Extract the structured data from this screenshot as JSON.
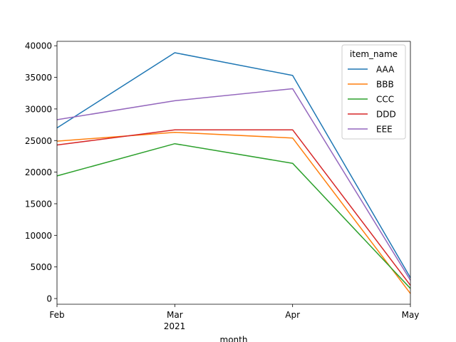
{
  "chart_data": {
    "type": "line",
    "categories": [
      "Feb",
      "Mar",
      "Apr",
      "May"
    ],
    "x_secondary_label": "2021",
    "xlabel": "month",
    "ylabel": "",
    "ylim": [
      -900,
      40700
    ],
    "yticks": [
      0,
      5000,
      10000,
      15000,
      20000,
      25000,
      30000,
      35000,
      40000
    ],
    "grid": false,
    "legend": {
      "title": "item_name",
      "placement": "top-right"
    },
    "series": [
      {
        "name": "AAA",
        "color": "#1f77b4",
        "values": [
          27000,
          38900,
          35300,
          3300
        ]
      },
      {
        "name": "BBB",
        "color": "#ff7f0e",
        "values": [
          24900,
          26300,
          25400,
          800
        ]
      },
      {
        "name": "CCC",
        "color": "#2ca02c",
        "values": [
          19400,
          24500,
          21400,
          1600
        ]
      },
      {
        "name": "DDD",
        "color": "#d62728",
        "values": [
          24300,
          26700,
          26700,
          2100
        ]
      },
      {
        "name": "EEE",
        "color": "#9467bd",
        "values": [
          28300,
          31300,
          33200,
          2900
        ]
      }
    ]
  }
}
